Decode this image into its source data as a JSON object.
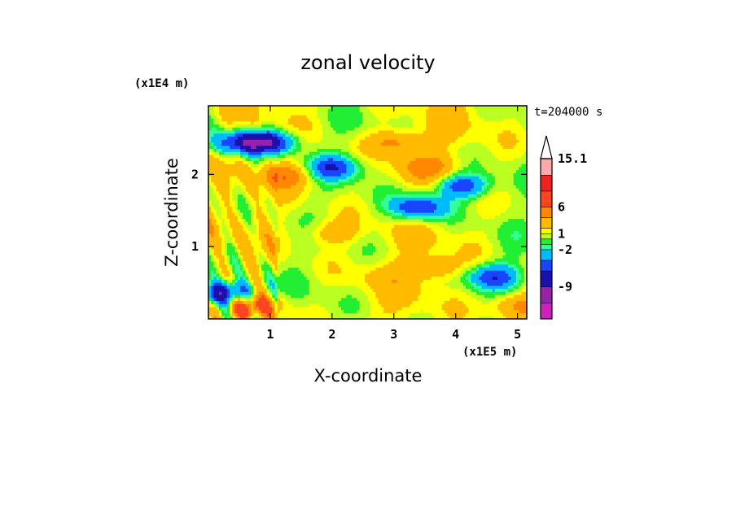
{
  "chart_data": {
    "type": "heatmap",
    "title": "zonal velocity",
    "xlabel": "X-coordinate",
    "ylabel": "Z-coordinate",
    "x_units": "(x1E5 m)",
    "y_units": "(x1E4 m)",
    "time_label": "t=204000 s",
    "xlim": [
      0,
      5.15
    ],
    "ylim": [
      0,
      2.95
    ],
    "x_ticks": [
      "1",
      "2",
      "3",
      "4",
      "5"
    ],
    "y_ticks": [
      "1",
      "2"
    ],
    "colorbar": {
      "levels": [
        -15,
        -12,
        -9,
        -6,
        -4,
        -2,
        -1,
        0,
        1,
        2,
        4,
        6,
        9,
        12,
        15.1
      ],
      "colors": [
        "#ff33cc",
        "#cc22bb",
        "#9922aa",
        "#1a11aa",
        "#1a44ff",
        "#00bbff",
        "#33ff99",
        "#22ee33",
        "#bbff22",
        "#ffff00",
        "#ffbb00",
        "#ff8800",
        "#ff4422",
        "#ee2222",
        "#ffaaaa",
        "#ffcccc"
      ],
      "tick_labels": [
        "15.1",
        "6",
        "1",
        "-2",
        "-9"
      ],
      "tick_values": [
        15.1,
        6,
        1,
        -2,
        -9
      ],
      "extend": "max"
    },
    "field_features": [
      {
        "x": 0.5,
        "z": 2.45,
        "value": -7
      },
      {
        "x": 1.0,
        "z": 2.45,
        "value": -8
      },
      {
        "x": 3.4,
        "z": 1.55,
        "value": -8
      },
      {
        "x": 4.1,
        "z": 1.85,
        "value": -7
      },
      {
        "x": 2.0,
        "z": 2.1,
        "value": -6
      },
      {
        "x": 3.05,
        "z": 2.45,
        "value": 4
      },
      {
        "x": 3.5,
        "z": 2.1,
        "value": 3
      },
      {
        "x": 1.3,
        "z": 2.0,
        "value": 4
      },
      {
        "x": 2.0,
        "z": 1.2,
        "value": 3
      },
      {
        "x": 3.7,
        "z": 0.7,
        "value": 3
      },
      {
        "x": 2.8,
        "z": 0.6,
        "value": 1
      },
      {
        "x": 0.3,
        "z": 0.35,
        "value": -10
      },
      {
        "x": 0.7,
        "z": 0.2,
        "value": 6
      },
      {
        "x": 4.6,
        "z": 0.6,
        "value": -6
      },
      {
        "x": 5.0,
        "z": 0.2,
        "value": 4
      }
    ]
  }
}
